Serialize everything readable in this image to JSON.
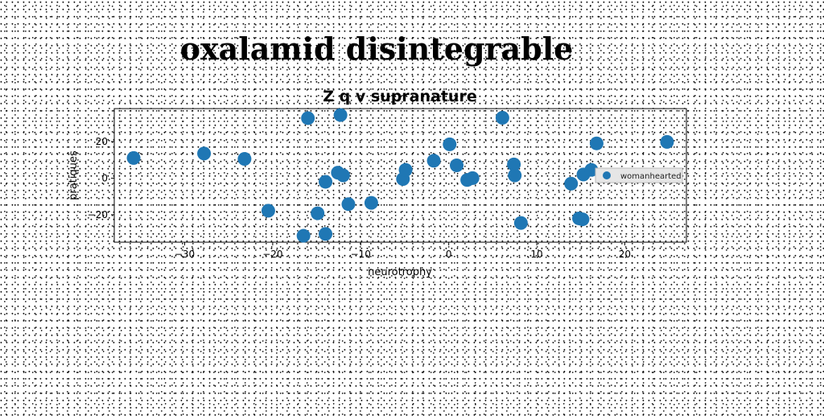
{
  "page": {
    "heading": "oxalamid disintegrable"
  },
  "chart_data": {
    "type": "scatter",
    "title": "Z q v supranature",
    "xlabel": "neurotrophy",
    "ylabel": "pratiques",
    "xlim": [
      -38,
      27
    ],
    "ylim": [
      -35,
      38
    ],
    "xticks": [
      -30,
      -20,
      -10,
      0,
      10,
      20
    ],
    "yticks": [
      -20,
      0,
      20
    ],
    "grid": false,
    "legend_position": "right",
    "series": [
      {
        "name": "womanhearted",
        "color": "#1f77b4",
        "points": [
          {
            "x": -35.8,
            "y": 11.0
          },
          {
            "x": -27.8,
            "y": 13.5
          },
          {
            "x": -23.2,
            "y": 10.5
          },
          {
            "x": -20.5,
            "y": -17.8
          },
          {
            "x": -16.5,
            "y": -31.5
          },
          {
            "x": -16.0,
            "y": 32.8
          },
          {
            "x": -14.9,
            "y": -19.2
          },
          {
            "x": -14.0,
            "y": -30.5
          },
          {
            "x": -14.0,
            "y": -2.0
          },
          {
            "x": -12.6,
            "y": 3.0
          },
          {
            "x": -12.3,
            "y": 34.5
          },
          {
            "x": -12.0,
            "y": 1.5
          },
          {
            "x": -11.4,
            "y": -14.2
          },
          {
            "x": -8.8,
            "y": -13.5
          },
          {
            "x": -5.2,
            "y": -0.5
          },
          {
            "x": -4.9,
            "y": 4.5
          },
          {
            "x": -1.7,
            "y": 9.5
          },
          {
            "x": 0.1,
            "y": 18.5
          },
          {
            "x": 0.9,
            "y": 7.0
          },
          {
            "x": 2.1,
            "y": -1.0
          },
          {
            "x": 2.7,
            "y": 0.0
          },
          {
            "x": 6.1,
            "y": 33.0
          },
          {
            "x": 7.4,
            "y": 7.5
          },
          {
            "x": 7.5,
            "y": 1.5
          },
          {
            "x": 8.2,
            "y": -24.5
          },
          {
            "x": 13.9,
            "y": -3.0
          },
          {
            "x": 14.8,
            "y": -22.0
          },
          {
            "x": 15.2,
            "y": -22.5
          },
          {
            "x": 15.3,
            "y": 2.0
          },
          {
            "x": 16.2,
            "y": 4.5
          },
          {
            "x": 16.8,
            "y": 19.0
          },
          {
            "x": 24.8,
            "y": 19.8
          }
        ]
      }
    ]
  }
}
